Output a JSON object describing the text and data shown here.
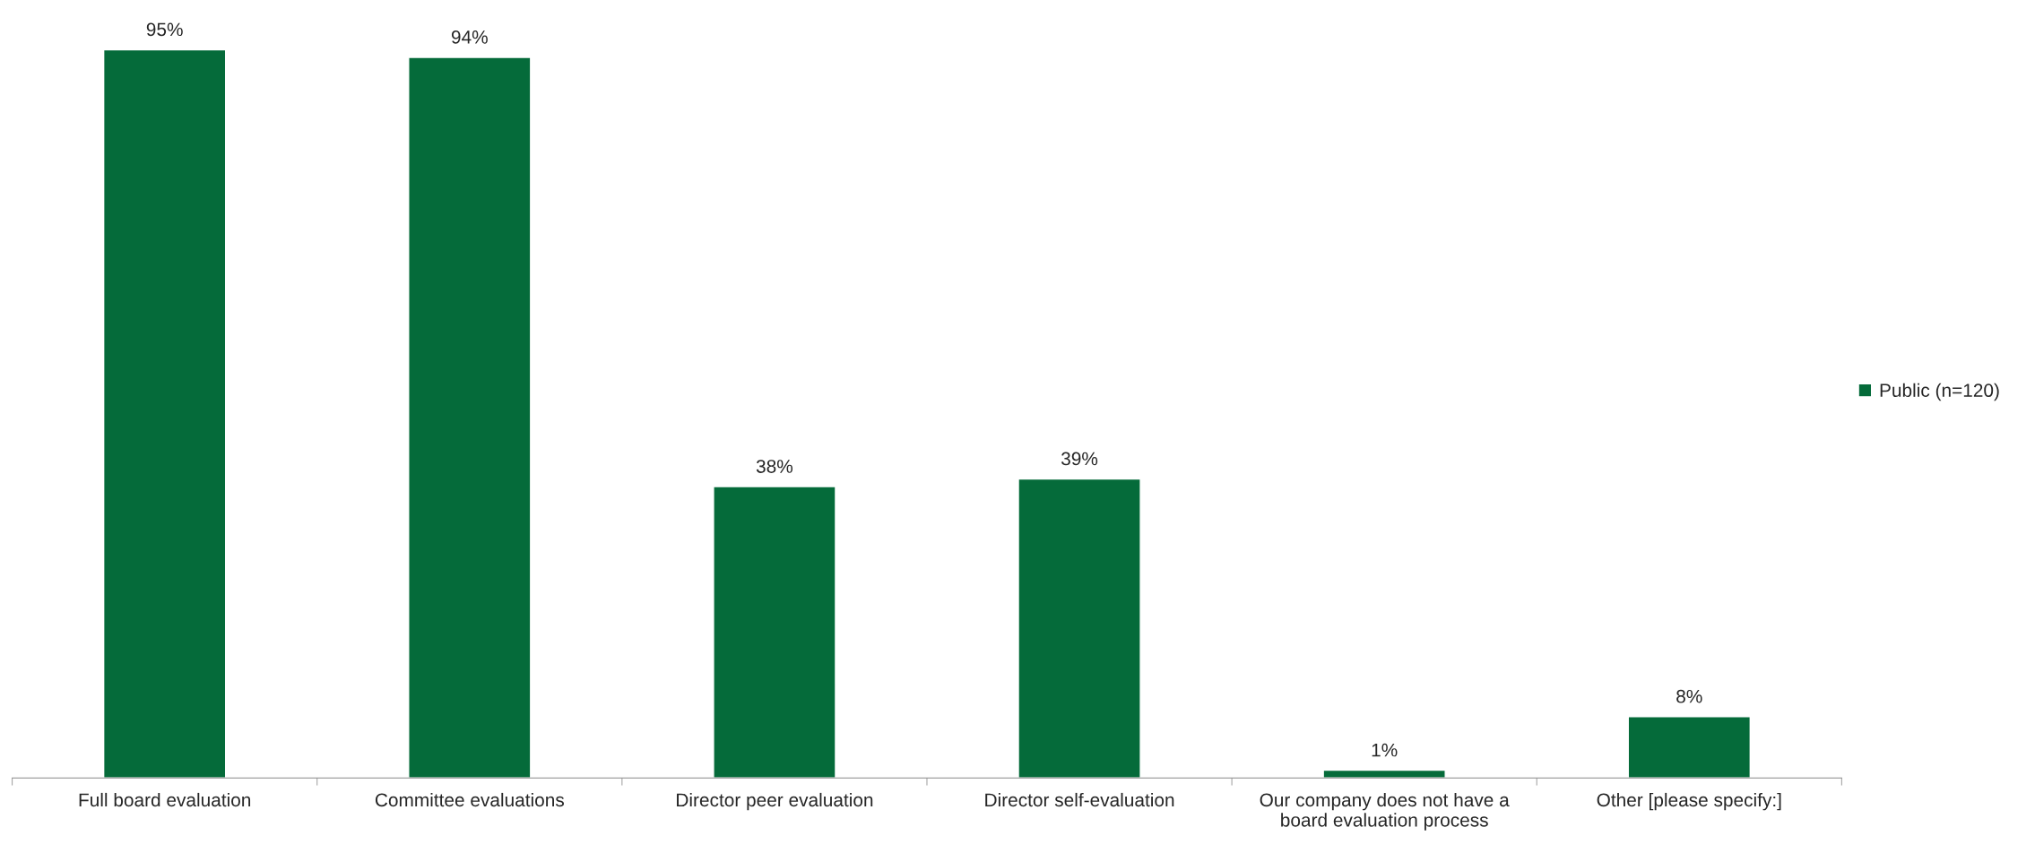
{
  "chart_data": {
    "type": "bar",
    "categories": [
      "Full board evaluation",
      "Committee evaluations",
      "Director peer evaluation",
      "Director self-evaluation",
      "Our company does not have a\nboard evaluation process",
      "Other [please specify:]"
    ],
    "series": [
      {
        "name": "Public (n=120)",
        "color": "#056b3a",
        "values": [
          95,
          94,
          38,
          39,
          1,
          8
        ],
        "value_labels": [
          "95%",
          "94%",
          "38%",
          "39%",
          "1%",
          "8%"
        ]
      }
    ],
    "legend": "right",
    "grid": false
  }
}
